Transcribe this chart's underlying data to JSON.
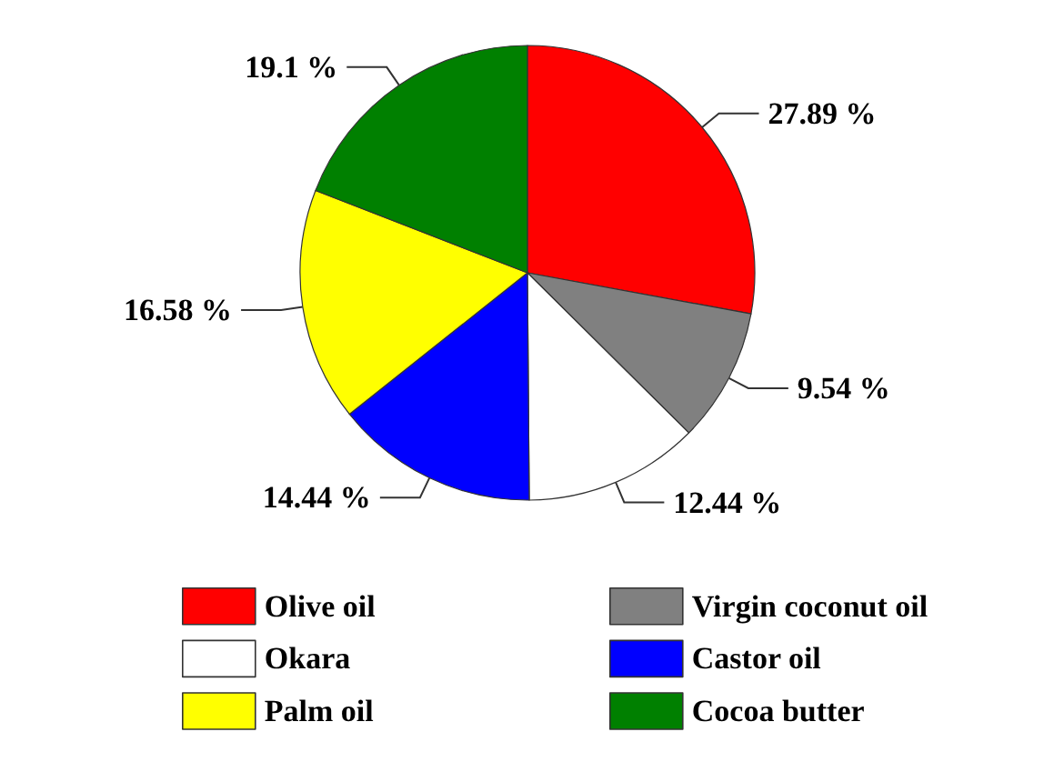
{
  "chart_data": {
    "type": "pie",
    "categories": [
      "Olive oil",
      "Virgin coconut oil",
      "Okara",
      "Castor oil",
      "Palm oil",
      "Cocoa butter"
    ],
    "values": [
      27.89,
      9.54,
      12.44,
      14.44,
      16.58,
      19.1
    ],
    "colors": [
      "#ff0000",
      "#808080",
      "#ffffff",
      "#0000ff",
      "#ffff00",
      "#008000"
    ],
    "value_labels": [
      "27.89 %",
      "9.54 %",
      "12.44 %",
      "14.44 %",
      "16.58 %",
      "19.1 %"
    ],
    "legend": "bottom"
  }
}
